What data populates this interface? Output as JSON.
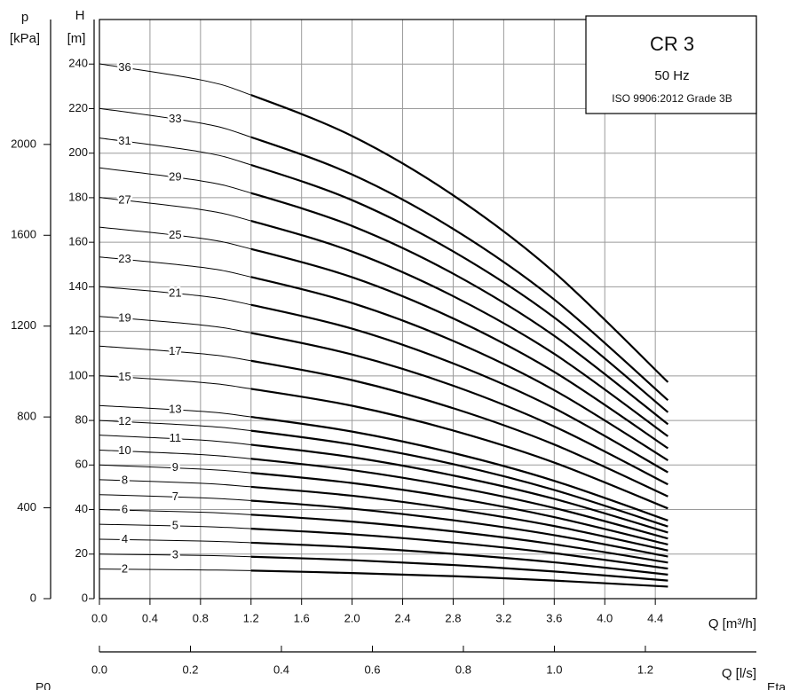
{
  "chart_data": {
    "type": "line",
    "title": "CR 3",
    "subtitle": "50 Hz",
    "annotation": "ISO 9906:2012 Grade 3B",
    "ylabel": "H",
    "yunit": "[m]",
    "y2label": "p",
    "y2unit": "[kPa]",
    "xlabel": "Q [m³/h]",
    "x2label": "Q [l/s]",
    "footer_labels": [
      "P0",
      "Eta"
    ],
    "grid": true,
    "xlim": [
      0,
      5.2
    ],
    "xticks": [
      {
        "value": 0,
        "label": "0.0"
      },
      0.4,
      0.8,
      1.2,
      1.6,
      {
        "value": 2,
        "label": "2.0"
      },
      2.4,
      2.8,
      3.2,
      3.6,
      {
        "value": 4,
        "label": "4.0"
      },
      4.4
    ],
    "ylim": [
      0,
      260
    ],
    "yticks": [
      0,
      20,
      40,
      60,
      80,
      100,
      120,
      140,
      160,
      180,
      200,
      220,
      240
    ],
    "y2lim": [
      0,
      2550
    ],
    "y2ticks": [
      0,
      400,
      800,
      1200,
      1600,
      2000
    ],
    "x2lim": [
      0,
      1.444
    ],
    "x2ticks": [
      {
        "value": 0,
        "label": "0.0"
      },
      0.2,
      0.4,
      0.6,
      0.8,
      {
        "value": 1,
        "label": "1.0"
      },
      1.2
    ],
    "x": [
      0,
      0.8,
      1.2,
      2.0,
      2.8,
      3.6,
      4.5
    ],
    "series": [
      {
        "name": "2",
        "color": "#000000",
        "values": [
          13.3,
          12.9,
          12.6,
          11.5,
          10.1,
          8.1,
          5.4
        ]
      },
      {
        "name": "3",
        "color": "#000000",
        "values": [
          20.0,
          19.4,
          18.8,
          17.3,
          15.1,
          12.2,
          8.1
        ]
      },
      {
        "name": "4",
        "color": "#000000",
        "values": [
          26.7,
          25.9,
          25.1,
          23.1,
          20.1,
          16.3,
          10.8
        ]
      },
      {
        "name": "5",
        "color": "#000000",
        "values": [
          33.4,
          32.4,
          31.4,
          28.9,
          25.2,
          20.4,
          13.5
        ]
      },
      {
        "name": "6",
        "color": "#000000",
        "values": [
          40.0,
          38.8,
          37.7,
          34.6,
          30.2,
          24.4,
          16.2
        ]
      },
      {
        "name": "7",
        "color": "#000000",
        "values": [
          46.7,
          45.3,
          44.0,
          40.4,
          35.2,
          28.5,
          18.9
        ]
      },
      {
        "name": "8",
        "color": "#000000",
        "values": [
          53.4,
          51.8,
          50.2,
          46.2,
          40.2,
          32.6,
          21.6
        ]
      },
      {
        "name": "9",
        "color": "#000000",
        "values": [
          60.0,
          58.2,
          56.5,
          51.9,
          45.3,
          36.6,
          24.3
        ]
      },
      {
        "name": "10",
        "color": "#000000",
        "values": [
          66.7,
          64.7,
          62.8,
          57.7,
          50.3,
          40.7,
          27.0
        ]
      },
      {
        "name": "11",
        "color": "#000000",
        "values": [
          73.4,
          71.2,
          69.1,
          63.5,
          55.3,
          44.8,
          29.7
        ]
      },
      {
        "name": "12",
        "color": "#000000",
        "values": [
          80.0,
          77.6,
          75.4,
          69.2,
          60.4,
          48.8,
          32.4
        ]
      },
      {
        "name": "13",
        "color": "#000000",
        "values": [
          86.7,
          84.1,
          81.6,
          75.0,
          65.4,
          52.9,
          35.1
        ]
      },
      {
        "name": "15",
        "color": "#000000",
        "values": [
          100.1,
          97.1,
          94.2,
          86.6,
          75.5,
          61.1,
          40.5
        ]
      },
      {
        "name": "17",
        "color": "#000000",
        "values": [
          113.4,
          110.0,
          106.8,
          98.1,
          85.5,
          69.2,
          45.9
        ]
      },
      {
        "name": "19",
        "color": "#000000",
        "values": [
          126.7,
          122.9,
          119.3,
          109.6,
          95.6,
          77.3,
          51.3
        ]
      },
      {
        "name": "21",
        "color": "#000000",
        "values": [
          140.1,
          135.9,
          131.9,
          121.2,
          105.6,
          85.5,
          56.7
        ]
      },
      {
        "name": "23",
        "color": "#000000",
        "values": [
          153.4,
          148.8,
          144.4,
          132.7,
          115.7,
          93.6,
          62.1
        ]
      },
      {
        "name": "25",
        "color": "#000000",
        "values": [
          166.8,
          161.8,
          157.0,
          144.3,
          125.8,
          101.8,
          67.5
        ]
      },
      {
        "name": "27",
        "color": "#000000",
        "values": [
          180.1,
          174.7,
          169.6,
          155.8,
          135.8,
          109.9,
          72.9
        ]
      },
      {
        "name": "29",
        "color": "#000000",
        "values": [
          193.4,
          187.6,
          182.1,
          167.3,
          145.9,
          118.0,
          78.3
        ]
      },
      {
        "name": "31",
        "color": "#000000",
        "values": [
          206.8,
          200.6,
          194.7,
          178.9,
          155.9,
          126.2,
          83.7
        ]
      },
      {
        "name": "33",
        "color": "#000000",
        "values": [
          220.1,
          213.5,
          207.2,
          190.4,
          166.0,
          134.3,
          89.1
        ]
      },
      {
        "name": "36",
        "color": "#000000",
        "values": [
          240.1,
          232.9,
          226.1,
          207.7,
          181.1,
          146.5,
          97.2
        ]
      }
    ]
  }
}
